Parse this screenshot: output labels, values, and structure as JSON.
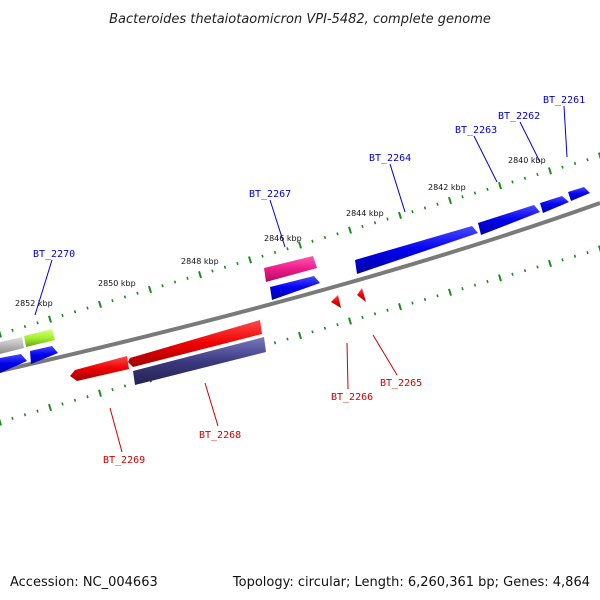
{
  "title": "Bacteroides thetaiotaomicron VPI-5482, complete genome",
  "footer": {
    "accession": "Accession: NC_004663",
    "summary": "Topology: circular; Length: 6,260,361 bp; Genes: 4,864"
  },
  "colors": {
    "backbone": "#7a7a7a",
    "tick": "#1f8a1f",
    "forward_label": "#0000cc",
    "reverse_label": "#cc0000",
    "gene_blue": "#0000ee",
    "gene_red": "#ee0000",
    "gene_navy": "#3c3a80",
    "gene_pink": "#ee1b8a",
    "gene_lime": "#a4f030",
    "gene_gray": "#b8b8b8"
  },
  "scale_labels": [
    "2840 kbp",
    "2842 kbp",
    "2844 kbp",
    "2846 kbp",
    "2848 kbp",
    "2850 kbp",
    "2852 kbp"
  ],
  "gene_labels": {
    "forward": [
      "BT_2261",
      "BT_2262",
      "BT_2263",
      "BT_2264",
      "BT_2267",
      "BT_2270"
    ],
    "reverse": [
      "BT_2265",
      "BT_2266",
      "BT_2268",
      "BT_2269"
    ]
  }
}
